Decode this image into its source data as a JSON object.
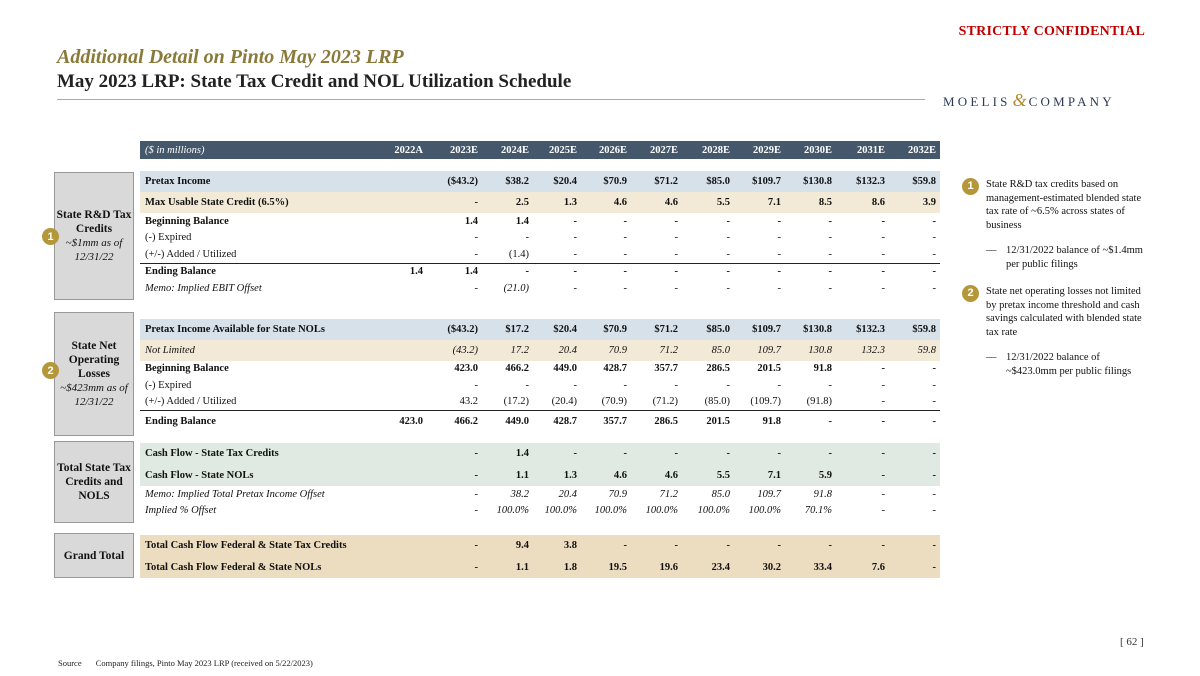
{
  "header": {
    "confidential": "STRICTLY CONFIDENTIAL",
    "subtitle": "Additional Detail on Pinto May 2023 LRP",
    "title": "May 2023 LRP: State Tax Credit and NOL Utilization Schedule",
    "logo_left": "MOELIS",
    "logo_amp": "&",
    "logo_right": "COMPANY"
  },
  "table": {
    "unit_label": "($ in millions)",
    "years": [
      "2022A",
      "2023E",
      "2024E",
      "2025E",
      "2026E",
      "2027E",
      "2028E",
      "2029E",
      "2030E",
      "2031E",
      "2032E"
    ],
    "rnd": [
      {
        "label": "Pretax Income",
        "values": [
          "",
          "($43.2)",
          "$38.2",
          "$20.4",
          "$70.9",
          "$71.2",
          "$85.0",
          "$109.7",
          "$130.8",
          "$132.3",
          "$59.8"
        ]
      },
      {
        "label": "Max Usable State Credit (6.5%)",
        "values": [
          "",
          "-",
          "2.5",
          "1.3",
          "4.6",
          "4.6",
          "5.5",
          "7.1",
          "8.5",
          "8.6",
          "3.9"
        ]
      },
      {
        "label": "Beginning Balance",
        "values": [
          "",
          "1.4",
          "1.4",
          "-",
          "-",
          "-",
          "-",
          "-",
          "-",
          "-",
          "-"
        ]
      },
      {
        "label": "(-) Expired",
        "values": [
          "",
          "-",
          "-",
          "-",
          "-",
          "-",
          "-",
          "-",
          "-",
          "-",
          "-"
        ]
      },
      {
        "label": "(+/-) Added / Utilized",
        "values": [
          "",
          "-",
          "(1.4)",
          "-",
          "-",
          "-",
          "-",
          "-",
          "-",
          "-",
          "-"
        ]
      },
      {
        "label": "Ending Balance",
        "values": [
          "1.4",
          "1.4",
          "-",
          "-",
          "-",
          "-",
          "-",
          "-",
          "-",
          "-",
          "-"
        ]
      },
      {
        "label": "Memo: Implied EBIT Offset",
        "values": [
          "",
          "-",
          "(21.0)",
          "-",
          "-",
          "-",
          "-",
          "-",
          "-",
          "-",
          "-"
        ]
      }
    ],
    "nol": [
      {
        "label": "Pretax Income Available for State NOLs",
        "values": [
          "",
          "($43.2)",
          "$17.2",
          "$20.4",
          "$70.9",
          "$71.2",
          "$85.0",
          "$109.7",
          "$130.8",
          "$132.3",
          "$59.8"
        ]
      },
      {
        "label": "Not Limited",
        "values": [
          "",
          "(43.2)",
          "17.2",
          "20.4",
          "70.9",
          "71.2",
          "85.0",
          "109.7",
          "130.8",
          "132.3",
          "59.8"
        ]
      },
      {
        "label": "Beginning Balance",
        "values": [
          "",
          "423.0",
          "466.2",
          "449.0",
          "428.7",
          "357.7",
          "286.5",
          "201.5",
          "91.8",
          "-",
          "-"
        ]
      },
      {
        "label": "(-) Expired",
        "values": [
          "",
          "-",
          "-",
          "-",
          "-",
          "-",
          "-",
          "-",
          "-",
          "-",
          "-"
        ]
      },
      {
        "label": "(+/-) Added / Utilized",
        "values": [
          "",
          "43.2",
          "(17.2)",
          "(20.4)",
          "(70.9)",
          "(71.2)",
          "(85.0)",
          "(109.7)",
          "(91.8)",
          "-",
          "-"
        ]
      },
      {
        "label": "Ending Balance",
        "values": [
          "423.0",
          "466.2",
          "449.0",
          "428.7",
          "357.7",
          "286.5",
          "201.5",
          "91.8",
          "-",
          "-",
          "-"
        ]
      }
    ],
    "total": [
      {
        "label": "Cash Flow - State Tax Credits",
        "values": [
          "",
          "-",
          "1.4",
          "-",
          "-",
          "-",
          "-",
          "-",
          "-",
          "-",
          "-"
        ]
      },
      {
        "label": "Cash Flow - State NOLs",
        "values": [
          "",
          "-",
          "1.1",
          "1.3",
          "4.6",
          "4.6",
          "5.5",
          "7.1",
          "5.9",
          "-",
          "-"
        ]
      },
      {
        "label": "Memo: Implied Total Pretax Income Offset",
        "values": [
          "",
          "-",
          "38.2",
          "20.4",
          "70.9",
          "71.2",
          "85.0",
          "109.7",
          "91.8",
          "-",
          "-"
        ]
      },
      {
        "label": "Implied % Offset",
        "values": [
          "",
          "-",
          "100.0%",
          "100.0%",
          "100.0%",
          "100.0%",
          "100.0%",
          "100.0%",
          "70.1%",
          "-",
          "-"
        ]
      }
    ],
    "grand": [
      {
        "label": "Total Cash Flow Federal & State Tax Credits",
        "values": [
          "",
          "-",
          "9.4",
          "3.8",
          "-",
          "-",
          "-",
          "-",
          "-",
          "-",
          "-"
        ]
      },
      {
        "label": "Total Cash Flow Federal & State NOLs",
        "values": [
          "",
          "-",
          "1.1",
          "1.8",
          "19.5",
          "19.6",
          "23.4",
          "30.2",
          "33.4",
          "7.6",
          "-"
        ]
      }
    ]
  },
  "sections": {
    "rnd": {
      "title": "State R&D Tax Credits",
      "sub": "~$1mm as of 12/31/22",
      "badge": "1"
    },
    "nol": {
      "title": "State Net Operating Losses",
      "sub": "~$423mm as of 12/31/22",
      "badge": "2"
    },
    "total": {
      "title": "Total State Tax Credits and NOLS"
    },
    "grand": {
      "title": "Grand Total"
    }
  },
  "notes": [
    {
      "badge": "1",
      "text": "State R&D tax credits based on management-estimated blended state tax rate of ~6.5% across states of business",
      "sub": "12/31/2022 balance of ~$1.4mm per public filings"
    },
    {
      "badge": "2",
      "text": "State net operating losses not limited by pretax income threshold and cash savings calculated with blended state tax rate",
      "sub": "12/31/2022 balance of ~$423.0mm per public filings"
    }
  ],
  "footer": {
    "page": "[ 62 ]",
    "source_label": "Source",
    "source_text": "Company filings, Pinto May 2023 LRP (received on 5/22/2023)"
  }
}
